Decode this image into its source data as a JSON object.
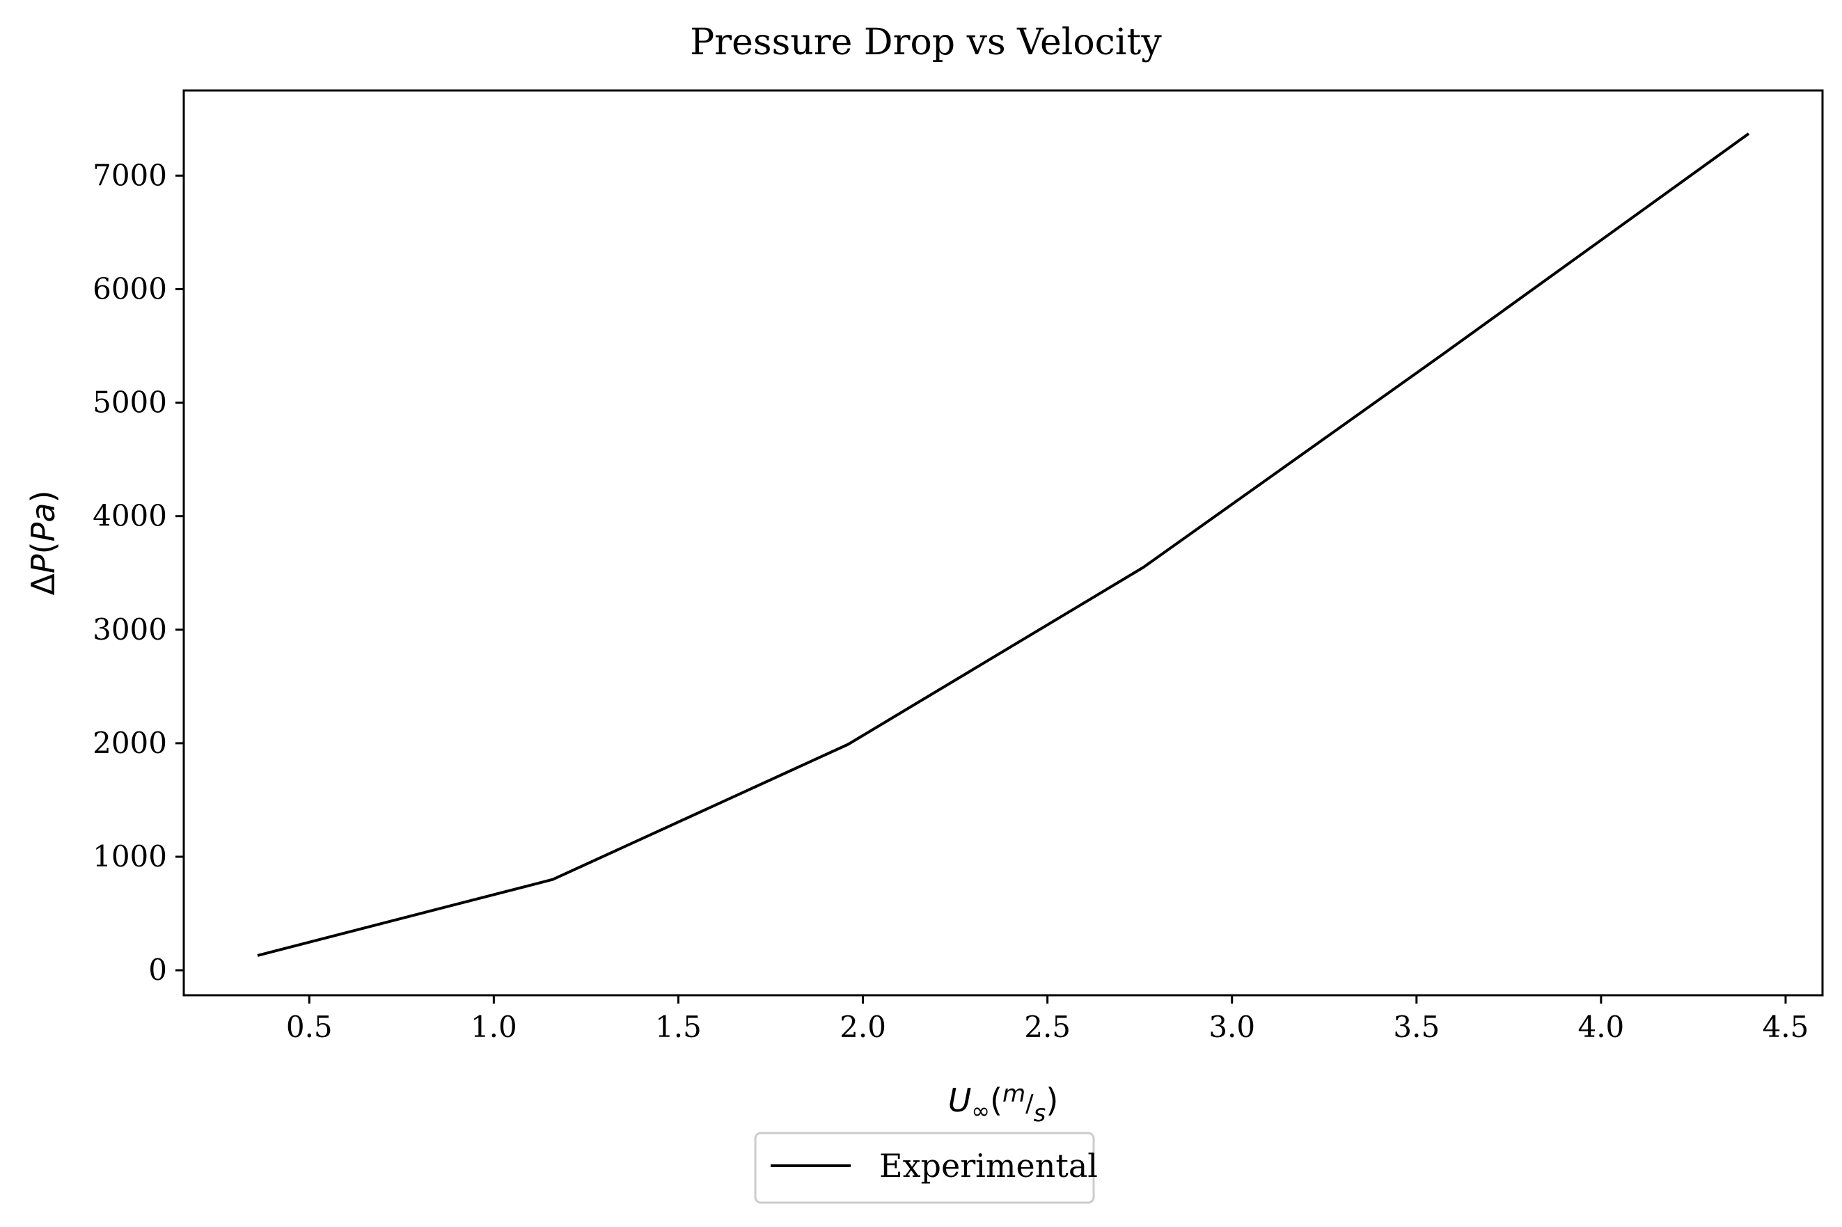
{
  "chart_data": {
    "type": "line",
    "title": "Pressure Drop vs Velocity",
    "xlabel": "U∞(m/s)",
    "ylabel": "ΔP(Pa)",
    "xlim": [
      0.16,
      4.6
    ],
    "ylim": [
      -220,
      7750
    ],
    "x_ticks": [
      0.5,
      1.0,
      1.5,
      2.0,
      2.5,
      3.0,
      3.5,
      4.0,
      4.5
    ],
    "x_tick_labels": [
      "0.5",
      "1.0",
      "1.5",
      "2.0",
      "2.5",
      "3.0",
      "3.5",
      "4.0",
      "4.5"
    ],
    "y_ticks": [
      0,
      1000,
      2000,
      3000,
      4000,
      5000,
      6000,
      7000
    ],
    "y_tick_labels": [
      "0",
      "1000",
      "2000",
      "3000",
      "4000",
      "5000",
      "6000",
      "7000"
    ],
    "grid": false,
    "legend_position": "bottom-center",
    "series": [
      {
        "name": "Experimental",
        "color": "#000000",
        "x": [
          0.36,
          1.16,
          1.96,
          2.76,
          3.56,
          4.4
        ],
        "y": [
          130,
          800,
          1990,
          3550,
          5400,
          7370
        ]
      }
    ]
  }
}
